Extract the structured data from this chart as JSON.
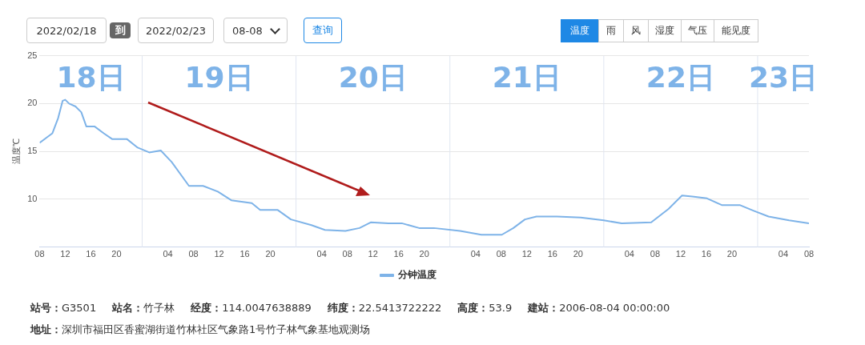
{
  "chart_data": {
    "type": "line",
    "ylabel": "温度℃",
    "legend": "bottom",
    "grid": "y",
    "marker": "none",
    "line_style": "solid",
    "xlim": [
      "2022-02-18T08:00",
      "2022-02-23T08:00"
    ],
    "ylim": [
      5,
      25
    ],
    "yticks": [
      10,
      15,
      20,
      25
    ],
    "xticks": [
      {
        "value": "2022-02-18T08:00",
        "label": "08"
      },
      {
        "value": "2022-02-18T12:00",
        "label": "12"
      },
      {
        "value": "2022-02-18T16:00",
        "label": "16"
      },
      {
        "value": "2022-02-18T20:00",
        "label": "20"
      },
      {
        "value": "2022-02-19T00:00",
        "label": null
      },
      {
        "value": "2022-02-19T04:00",
        "label": "04"
      },
      {
        "value": "2022-02-19T08:00",
        "label": "08"
      },
      {
        "value": "2022-02-19T12:00",
        "label": "12"
      },
      {
        "value": "2022-02-19T16:00",
        "label": "16"
      },
      {
        "value": "2022-02-19T20:00",
        "label": "20"
      },
      {
        "value": "2022-02-20T00:00",
        "label": null
      },
      {
        "value": "2022-02-20T04:00",
        "label": "04"
      },
      {
        "value": "2022-02-20T08:00",
        "label": "08"
      },
      {
        "value": "2022-02-20T12:00",
        "label": "12"
      },
      {
        "value": "2022-02-20T16:00",
        "label": "16"
      },
      {
        "value": "2022-02-20T20:00",
        "label": "20"
      },
      {
        "value": "2022-02-21T00:00",
        "label": null
      },
      {
        "value": "2022-02-21T04:00",
        "label": "04"
      },
      {
        "value": "2022-02-21T08:00",
        "label": "08"
      },
      {
        "value": "2022-02-21T12:00",
        "label": "12"
      },
      {
        "value": "2022-02-21T16:00",
        "label": "16"
      },
      {
        "value": "2022-02-21T20:00",
        "label": "20"
      },
      {
        "value": "2022-02-22T00:00",
        "label": null
      },
      {
        "value": "2022-02-22T04:00",
        "label": "04"
      },
      {
        "value": "2022-02-22T08:00",
        "label": "08"
      },
      {
        "value": "2022-02-22T12:00",
        "label": "12"
      },
      {
        "value": "2022-02-22T16:00",
        "label": "16"
      },
      {
        "value": "2022-02-22T20:00",
        "label": "20"
      },
      {
        "value": "2022-02-23T00:00",
        "label": null
      },
      {
        "value": "2022-02-23T04:00",
        "label": "04"
      },
      {
        "value": "2022-02-23T08:00",
        "label": "08"
      }
    ],
    "ref_lines": [
      {
        "axis": "x",
        "value": "2022-02-19T00:00",
        "color": "#e0e6f1"
      },
      {
        "axis": "x",
        "value": "2022-02-20T00:00",
        "color": "#e0e6f1"
      },
      {
        "axis": "x",
        "value": "2022-02-21T00:00",
        "color": "#e0e6f1"
      },
      {
        "axis": "x",
        "value": "2022-02-22T00:00",
        "color": "#e0e6f1"
      },
      {
        "axis": "x",
        "value": "2022-02-23T00:00",
        "color": "#e0e6f1"
      }
    ],
    "series": [
      {
        "name": "分钟温度",
        "color": "#7eb3e8",
        "x": [
          "2022-02-18T08:00",
          "2022-02-18T09:12",
          "2022-02-18T10:00",
          "2022-02-18T10:54",
          "2022-02-18T11:36",
          "2022-02-18T12:00",
          "2022-02-18T12:36",
          "2022-02-18T13:36",
          "2022-02-18T14:30",
          "2022-02-18T15:18",
          "2022-02-18T16:36",
          "2022-02-18T18:00",
          "2022-02-18T19:18",
          "2022-02-18T21:36",
          "2022-02-18T23:18",
          "2022-02-19T01:06",
          "2022-02-19T02:54",
          "2022-02-19T04:36",
          "2022-02-19T07:18",
          "2022-02-19T09:30",
          "2022-02-19T11:48",
          "2022-02-19T13:54",
          "2022-02-19T17:06",
          "2022-02-19T18:24",
          "2022-02-19T21:06",
          "2022-02-19T23:12",
          "2022-02-20T02:24",
          "2022-02-20T04:30",
          "2022-02-20T07:42",
          "2022-02-20T09:54",
          "2022-02-20T11:42",
          "2022-02-20T14:24",
          "2022-02-20T16:30",
          "2022-02-20T19:12",
          "2022-02-20T21:30",
          "2022-02-21T01:36",
          "2022-02-21T04:54",
          "2022-02-21T08:06",
          "2022-02-21T09:54",
          "2022-02-21T11:42",
          "2022-02-21T13:30",
          "2022-02-21T16:42",
          "2022-02-21T20:24",
          "2022-02-22T00:00",
          "2022-02-22T02:48",
          "2022-02-22T07:24",
          "2022-02-22T10:06",
          "2022-02-22T12:12",
          "2022-02-22T13:48",
          "2022-02-22T16:06",
          "2022-02-22T18:24",
          "2022-02-22T21:12",
          "2022-02-22T23:24",
          "2022-02-23T01:42",
          "2022-02-23T04:54",
          "2022-02-23T08:00"
        ],
        "values": [
          15.9,
          16.5,
          16.9,
          18.5,
          20.3,
          20.4,
          20,
          19.7,
          19.1,
          17.6,
          17.6,
          16.9,
          16.3,
          16.3,
          15.4,
          14.9,
          15.1,
          13.9,
          11.4,
          11.4,
          10.8,
          9.9,
          9.6,
          8.9,
          8.9,
          7.9,
          7.3,
          6.8,
          6.7,
          7,
          7.6,
          7.5,
          7.5,
          7,
          7,
          6.7,
          6.3,
          6.3,
          7,
          7.9,
          8.2,
          8.2,
          8.1,
          7.8,
          7.5,
          7.6,
          9,
          10.4,
          10.3,
          10.1,
          9.4,
          9.4,
          8.8,
          8.2,
          7.8,
          7.5
        ]
      }
    ],
    "annotations": [
      "2022/02/18",
      "到",
      "2022/02/23",
      "08-08",
      "查询",
      "温度",
      "雨",
      "风",
      "湿度",
      "气压",
      "能见度",
      "18日",
      "19日",
      "20日",
      "21日",
      "22日",
      "23日",
      "站号：G3501",
      "站名：竹子林",
      "经度：114.0047638889",
      "纬度：22.5413722222",
      "高度：53.9",
      "建站：2006-08-04 00:00:00",
      "地址：深圳市福田区香蜜湖街道竹林社区气象路1号竹子林气象基地观测场"
    ]
  }
}
